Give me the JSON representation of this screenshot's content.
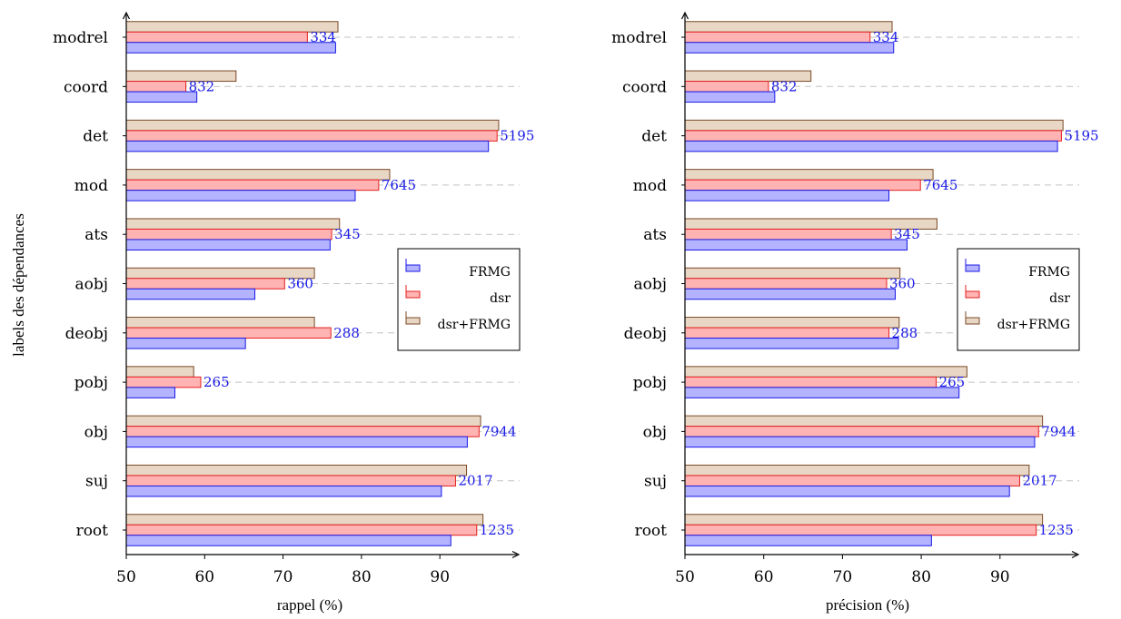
{
  "chart_data": [
    {
      "type": "bar",
      "orientation": "horizontal",
      "categories": [
        "modrel",
        "coord",
        "det",
        "mod",
        "ats",
        "aobj",
        "deobj",
        "pobj",
        "obj",
        "suj",
        "root"
      ],
      "counts": [
        "334",
        "832",
        "5195",
        "7645",
        "345",
        "360",
        "288",
        "265",
        "7944",
        "2017",
        "1235"
      ],
      "series": [
        {
          "name": "FRMG",
          "values": [
            76.7,
            59.0,
            96.2,
            79.2,
            76.0,
            66.4,
            65.2,
            56.2,
            93.5,
            90.2,
            91.4
          ],
          "color": "#b3b3ff",
          "stroke": "#1a1ae6"
        },
        {
          "name": "dsr",
          "values": [
            73.1,
            57.6,
            97.3,
            82.2,
            76.2,
            70.2,
            76.1,
            59.5,
            95.0,
            92.0,
            94.7
          ],
          "color": "#ffb3b3",
          "stroke": "#e62020"
        },
        {
          "name": "dsr+FRMG",
          "values": [
            77.0,
            64.0,
            97.5,
            83.6,
            77.2,
            74.0,
            74.0,
            58.6,
            95.2,
            93.4,
            95.5
          ],
          "color": "#e8d7c5",
          "stroke": "#7a4a28"
        }
      ],
      "xlabel": "rappel (%)",
      "ylabel": "labels des dépendances",
      "xticks": [
        "50",
        "60",
        "70",
        "80",
        "90"
      ],
      "xlim": [
        50,
        98
      ],
      "grid": "dashed horizontal",
      "legend": "right"
    },
    {
      "type": "bar",
      "orientation": "horizontal",
      "categories": [
        "modrel",
        "coord",
        "det",
        "mod",
        "ats",
        "aobj",
        "deobj",
        "pobj",
        "obj",
        "suj",
        "root"
      ],
      "counts": [
        "334",
        "832",
        "5195",
        "7645",
        "345",
        "360",
        "288",
        "265",
        "7944",
        "2017",
        "1235"
      ],
      "series": [
        {
          "name": "FRMG",
          "values": [
            76.5,
            61.4,
            97.3,
            75.9,
            78.2,
            76.7,
            77.1,
            84.8,
            94.4,
            91.2,
            81.3
          ],
          "color": "#b3b3ff",
          "stroke": "#1a1ae6"
        },
        {
          "name": "dsr",
          "values": [
            73.5,
            60.6,
            97.8,
            79.9,
            76.2,
            75.6,
            75.9,
            81.9,
            94.9,
            92.5,
            94.6
          ],
          "color": "#ffb3b3",
          "stroke": "#e62020"
        },
        {
          "name": "dsr+FRMG",
          "values": [
            76.3,
            66.0,
            98.0,
            81.5,
            82.0,
            77.3,
            77.2,
            85.8,
            95.4,
            93.7,
            95.4
          ],
          "color": "#e8d7c5",
          "stroke": "#7a4a28"
        }
      ],
      "xlabel": "précision (%)",
      "ylabel": "",
      "xticks": [
        "50",
        "60",
        "70",
        "80",
        "90"
      ],
      "xlim": [
        50,
        98
      ],
      "grid": "dashed horizontal",
      "legend": "right"
    }
  ]
}
